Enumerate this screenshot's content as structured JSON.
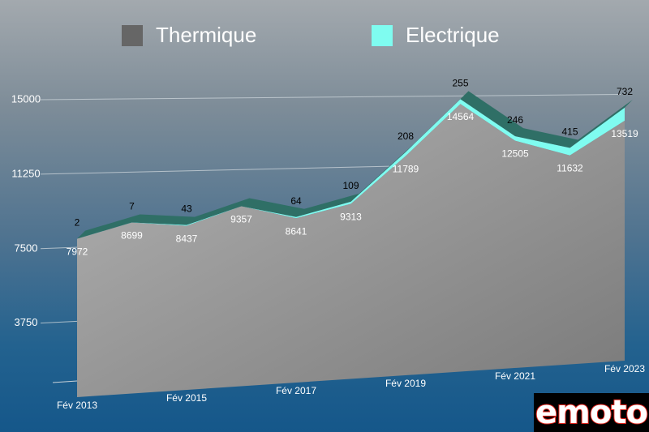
{
  "chart_data": {
    "type": "area",
    "stacked": true,
    "categories": [
      "Fév 2013",
      "Fév 2014",
      "Fév 2015",
      "Fév 2016",
      "Fév 2017",
      "Fév 2018",
      "Fév 2019",
      "Fév 2020",
      "Fév 2021",
      "Fév 2022",
      "Fév 2023"
    ],
    "x_tick_labels": [
      "Fév 2013",
      "Fév 2015",
      "Fév 2017",
      "Fév 2019",
      "Fév 2021",
      "Fév 2023"
    ],
    "series": [
      {
        "name": "Thermique",
        "color": "#6a6a6a",
        "values": [
          7972,
          8699,
          8437,
          9357,
          8641,
          9313,
          11789,
          14564,
          12505,
          11632,
          13519
        ]
      },
      {
        "name": "Electrique",
        "color": "#7ffcf0",
        "values": [
          2,
          7,
          43,
          null,
          64,
          109,
          208,
          255,
          246,
          415,
          732
        ]
      }
    ],
    "yticks": [
      3750,
      7500,
      11250,
      15000
    ],
    "ylim": [
      0,
      15000
    ],
    "grid": true,
    "legend": "top"
  },
  "logo": "emoto"
}
